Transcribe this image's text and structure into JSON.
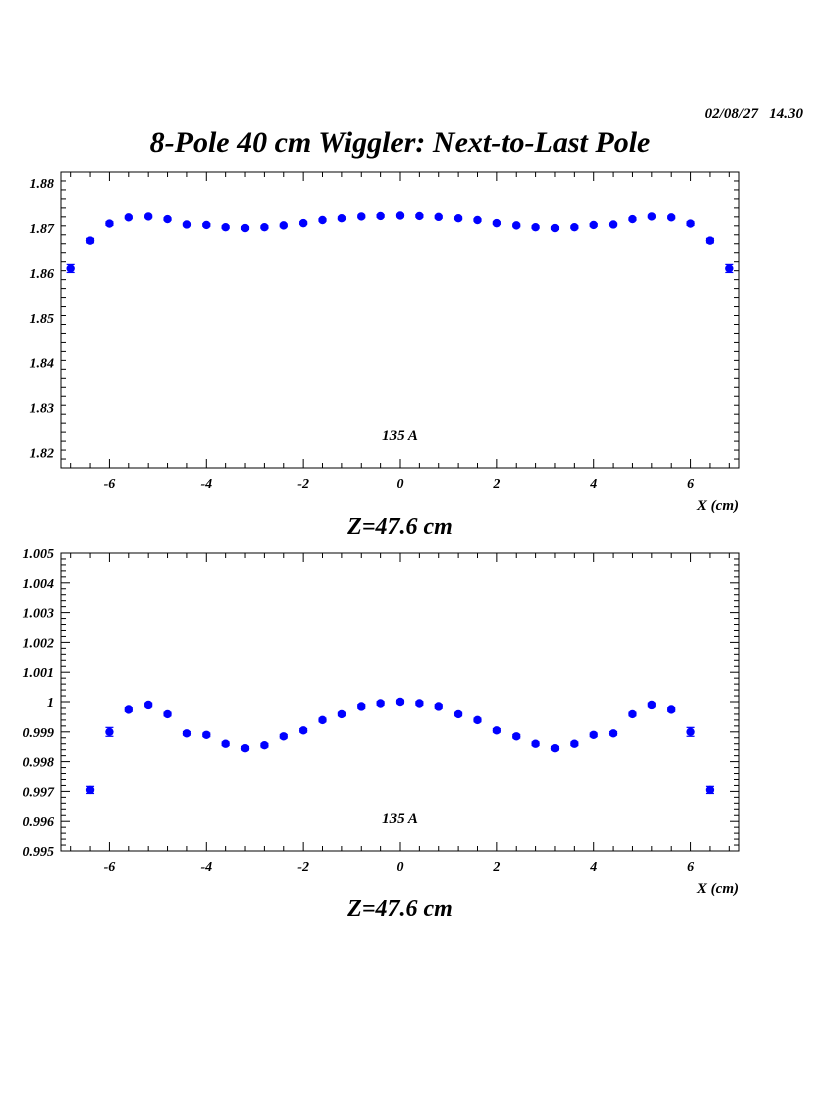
{
  "header": {
    "timestamp": "02/08/27   14.30",
    "title": "8-Pole 40 cm Wiggler: Next-to-Last Pole"
  },
  "chart_data": [
    {
      "type": "scatter",
      "title": "8-Pole 40 cm Wiggler: Next-to-Last Pole",
      "caption": "Z=47.6 cm",
      "annotation": "135 A",
      "xlabel": "X (cm)",
      "ylabel": "",
      "xlim": [
        -7.0,
        7.0
      ],
      "ylim": [
        1.8165,
        1.8825
      ],
      "xticks": [
        -6,
        -4,
        -2,
        0,
        2,
        4,
        6
      ],
      "yticks": [
        1.82,
        1.83,
        1.84,
        1.85,
        1.86,
        1.87,
        1.88
      ],
      "ytick_labels": [
        "1.82",
        "1.83",
        "1.84",
        "1.85",
        "1.86",
        "1.87",
        "1.88"
      ],
      "marker_color": "#0000ff",
      "error_bars": true,
      "x": [
        -6.8,
        -6.4,
        -6.0,
        -5.6,
        -5.2,
        -4.8,
        -4.4,
        -4.0,
        -3.6,
        -3.2,
        -2.8,
        -2.4,
        -2.0,
        -1.6,
        -1.2,
        -0.8,
        -0.4,
        0.0,
        0.4,
        0.8,
        1.2,
        1.6,
        2.0,
        2.4,
        2.8,
        3.2,
        3.6,
        4.0,
        4.4,
        4.8,
        5.2,
        5.6,
        6.0,
        6.4,
        6.8
      ],
      "y": [
        1.861,
        1.8672,
        1.871,
        1.8724,
        1.8726,
        1.872,
        1.8708,
        1.8707,
        1.8702,
        1.87,
        1.8702,
        1.8706,
        1.8711,
        1.8718,
        1.8722,
        1.8726,
        1.8727,
        1.8728,
        1.8727,
        1.8725,
        1.8722,
        1.8718,
        1.8711,
        1.8706,
        1.8702,
        1.87,
        1.8702,
        1.8707,
        1.8708,
        1.872,
        1.8726,
        1.8724,
        1.871,
        1.8672,
        1.861
      ],
      "yerr": [
        0.0009,
        0.0005,
        0.0004,
        0.0003,
        0.0003,
        0.0003,
        0.0003,
        0.0003,
        0.0003,
        0.0003,
        0.0003,
        0.0003,
        0.0003,
        0.0003,
        0.0003,
        0.0003,
        0.0003,
        0.0003,
        0.0003,
        0.0003,
        0.0003,
        0.0003,
        0.0003,
        0.0003,
        0.0003,
        0.0003,
        0.0003,
        0.0003,
        0.0003,
        0.0003,
        0.0003,
        0.0003,
        0.0004,
        0.0005,
        0.0009
      ]
    },
    {
      "type": "scatter",
      "caption": "Z=47.6 cm",
      "annotation": "135 A",
      "xlabel": "X (cm)",
      "ylabel": "",
      "xlim": [
        -7.0,
        7.0
      ],
      "ylim": [
        0.995,
        1.005
      ],
      "xticks": [
        -6,
        -4,
        -2,
        0,
        2,
        4,
        6
      ],
      "yticks": [
        0.995,
        0.996,
        0.997,
        0.998,
        0.999,
        1.0,
        1.001,
        1.002,
        1.003,
        1.004,
        1.005
      ],
      "ytick_labels": [
        "0.995",
        "0.996",
        "0.997",
        "0.998",
        "0.999",
        "1",
        "1.001",
        "1.002",
        "1.003",
        "1.004",
        "1.005"
      ],
      "marker_color": "#0000ff",
      "error_bars": true,
      "x": [
        -6.4,
        -6.0,
        -5.6,
        -5.2,
        -4.8,
        -4.4,
        -4.0,
        -3.6,
        -3.2,
        -2.8,
        -2.4,
        -2.0,
        -1.6,
        -1.2,
        -0.8,
        -0.4,
        0.0,
        0.4,
        0.8,
        1.2,
        1.6,
        2.0,
        2.4,
        2.8,
        3.2,
        3.6,
        4.0,
        4.4,
        4.8,
        5.2,
        5.6,
        6.0,
        6.4
      ],
      "y": [
        0.99705,
        0.999,
        0.99975,
        0.9999,
        0.9996,
        0.99895,
        0.9989,
        0.9986,
        0.99845,
        0.99855,
        0.99885,
        0.99905,
        0.9994,
        0.9996,
        0.99985,
        0.99995,
        1.0,
        0.99995,
        0.99985,
        0.9996,
        0.9994,
        0.99905,
        0.99885,
        0.9986,
        0.99845,
        0.9986,
        0.9989,
        0.99895,
        0.9996,
        0.9999,
        0.99975,
        0.999,
        0.99705
      ],
      "yerr": [
        0.00012,
        0.00015,
        6e-05,
        6e-05,
        6e-05,
        6e-05,
        6e-05,
        6e-05,
        6e-05,
        6e-05,
        6e-05,
        6e-05,
        6e-05,
        6e-05,
        6e-05,
        6e-05,
        6e-05,
        6e-05,
        6e-05,
        6e-05,
        6e-05,
        6e-05,
        6e-05,
        6e-05,
        6e-05,
        6e-05,
        6e-05,
        6e-05,
        6e-05,
        6e-05,
        6e-05,
        0.00015,
        0.00012
      ]
    }
  ]
}
